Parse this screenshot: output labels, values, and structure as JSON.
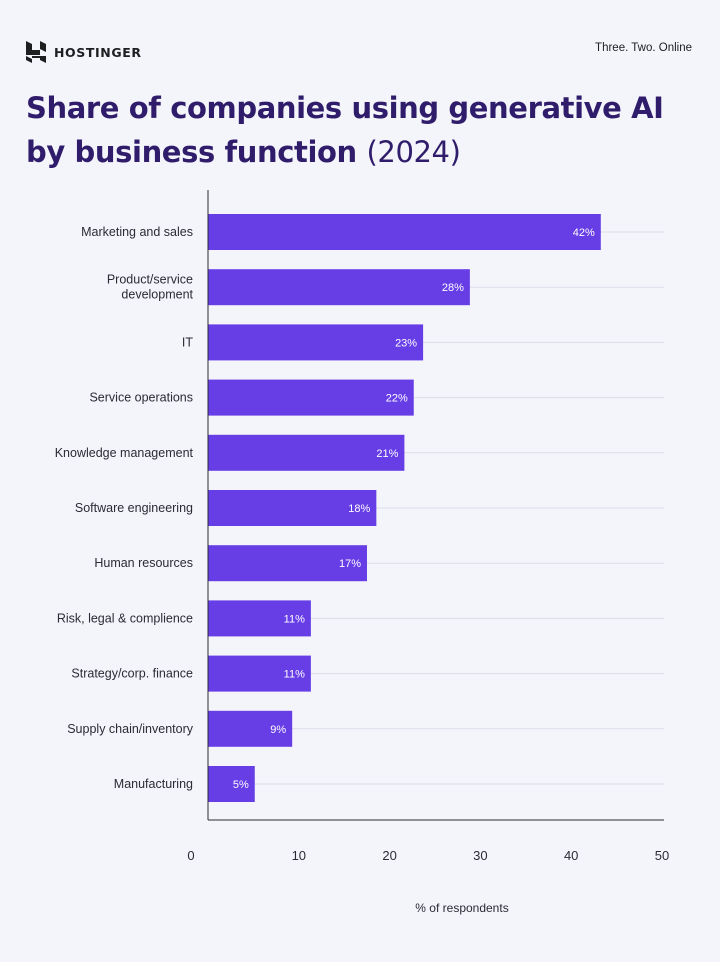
{
  "brand": {
    "name": "HOSTINGER",
    "tagline": "Three. Two. Online"
  },
  "title": {
    "main": "Share of companies using generative AI by business function",
    "year": "(2024)"
  },
  "colors": {
    "bar": "#673de6",
    "title": "#2f1c6a",
    "background": "#f4f4fb"
  },
  "chart_data": {
    "type": "bar",
    "orientation": "horizontal",
    "title": "Share of companies using generative AI by business function (2024)",
    "xlabel": "% of respondents",
    "ylabel": "",
    "xlim": [
      0,
      50
    ],
    "x_ticks": [
      "0",
      "10",
      "20",
      "30",
      "40",
      "50"
    ],
    "grid": true,
    "categories": [
      "Marketing and sales",
      "Product/service development",
      "IT",
      "Service operations",
      "Knowledge management",
      "Software engineering",
      "Human resources",
      "Risk, legal & complience",
      "Strategy/corp. finance",
      "Supply chain/inventory",
      "Manufacturing"
    ],
    "category_lines": [
      [
        "Marketing and sales"
      ],
      [
        "Product/service",
        "development"
      ],
      [
        "IT"
      ],
      [
        "Service operations"
      ],
      [
        "Knowledge management"
      ],
      [
        "Software engineering"
      ],
      [
        "Human resources"
      ],
      [
        "Risk, legal & complience"
      ],
      [
        "Strategy/corp. finance"
      ],
      [
        "Supply chain/inventory"
      ],
      [
        "Manufacturing"
      ]
    ],
    "values": [
      42,
      28,
      23,
      22,
      21,
      18,
      17,
      11,
      11,
      9,
      5
    ],
    "value_labels": [
      "42%",
      "28%",
      "23%",
      "22%",
      "21%",
      "18%",
      "17%",
      "11%",
      "11%",
      "9%",
      "5%"
    ]
  }
}
